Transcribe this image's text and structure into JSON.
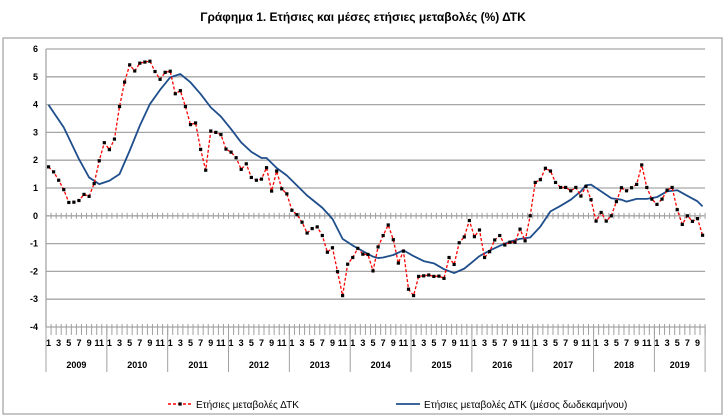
{
  "chart_data": {
    "type": "line",
    "title": "Γράφημα 1. Ετήσιες και μέσες ετήσιες μεταβολές (%) ΔΤΚ",
    "xlabel": "",
    "ylabel": "",
    "ylim": [
      -4,
      6
    ],
    "y_ticks": [
      6,
      5,
      4,
      3,
      2,
      1,
      0,
      -1,
      -2,
      -3,
      -4
    ],
    "years": [
      "2009",
      "2010",
      "2011",
      "2012",
      "2013",
      "2014",
      "2015",
      "2016",
      "2017",
      "2018",
      "2019"
    ],
    "month_tick_labels": [
      "1",
      "3",
      "5",
      "7",
      "9",
      "11"
    ],
    "grid": true,
    "legend_position": "bottom",
    "colors": {
      "annual": "#ff0000",
      "marker": "#000000",
      "average": "#1f4e8c",
      "grid": "#a6a6a6"
    },
    "series": [
      {
        "name": "Ετήσιες μεταβολές ΔΤΚ",
        "style": "dashed-with-markers",
        "values": [
          1.76,
          1.58,
          1.28,
          0.94,
          0.48,
          0.49,
          0.55,
          0.77,
          0.7,
          1.16,
          1.98,
          2.63,
          2.38,
          2.76,
          3.93,
          4.81,
          5.43,
          5.21,
          5.49,
          5.53,
          5.56,
          5.19,
          4.91,
          5.16,
          5.2,
          4.39,
          4.5,
          3.93,
          3.28,
          3.34,
          2.39,
          1.64,
          3.05,
          3.0,
          2.92,
          2.4,
          2.29,
          2.09,
          1.67,
          1.87,
          1.38,
          1.28,
          1.32,
          1.73,
          0.89,
          1.61,
          0.97,
          0.79,
          0.2,
          0.04,
          -0.23,
          -0.62,
          -0.46,
          -0.4,
          -0.71,
          -1.31,
          -1.15,
          -2.01,
          -2.87,
          -1.74,
          -1.5,
          -1.17,
          -1.38,
          -1.39,
          -1.98,
          -1.12,
          -0.71,
          -0.33,
          -0.86,
          -1.7,
          -1.27,
          -2.64,
          -2.87,
          -2.18,
          -2.16,
          -2.13,
          -2.18,
          -2.17,
          -2.25,
          -1.5,
          -1.75,
          -0.97,
          -0.76,
          -0.17,
          -0.75,
          -0.51,
          -1.5,
          -1.29,
          -0.87,
          -0.71,
          -1.05,
          -0.95,
          -0.95,
          -0.48,
          -0.9,
          0.0,
          1.2,
          1.3,
          1.71,
          1.61,
          1.2,
          1.02,
          1.02,
          0.9,
          1.02,
          0.71,
          1.06,
          0.58,
          -0.19,
          0.12,
          -0.19,
          0.0,
          0.51,
          1.01,
          0.9,
          1.01,
          1.13,
          1.83,
          1.02,
          0.6,
          0.41,
          0.6,
          0.92,
          1.02,
          0.22,
          -0.31,
          0.0,
          -0.2,
          -0.1,
          -0.7
        ]
      },
      {
        "name": "Ετήσιες μεταβολές ΔΤΚ (μέσος δωδεκαμήνου)",
        "style": "solid",
        "points": [
          [
            "2009-01",
            3.99
          ],
          [
            "2009-04",
            3.18
          ],
          [
            "2009-07",
            2.04
          ],
          [
            "2009-09",
            1.38
          ],
          [
            "2009-11",
            1.14
          ],
          [
            "2010-01",
            1.26
          ],
          [
            "2010-03",
            1.5
          ],
          [
            "2010-05",
            2.34
          ],
          [
            "2010-07",
            3.24
          ],
          [
            "2010-09",
            4.02
          ],
          [
            "2010-11",
            4.53
          ],
          [
            "2011-01",
            4.98
          ],
          [
            "2011-03",
            5.1
          ],
          [
            "2011-05",
            4.8
          ],
          [
            "2011-07",
            4.38
          ],
          [
            "2011-09",
            3.9
          ],
          [
            "2011-11",
            3.57
          ],
          [
            "2012-01",
            3.12
          ],
          [
            "2012-03",
            2.64
          ],
          [
            "2012-05",
            2.3
          ],
          [
            "2012-07",
            2.08
          ],
          [
            "2012-08",
            2.08
          ],
          [
            "2012-10",
            1.72
          ],
          [
            "2012-12",
            1.45
          ],
          [
            "2013-02",
            1.09
          ],
          [
            "2013-04",
            0.73
          ],
          [
            "2013-07",
            0.29
          ],
          [
            "2013-09",
            -0.11
          ],
          [
            "2013-11",
            -0.83
          ],
          [
            "2014-01",
            -1.07
          ],
          [
            "2014-03",
            -1.27
          ],
          [
            "2014-05",
            -1.47
          ],
          [
            "2014-06",
            -1.52
          ],
          [
            "2014-07",
            -1.5
          ],
          [
            "2014-09",
            -1.41
          ],
          [
            "2014-11",
            -1.24
          ],
          [
            "2015-01",
            -1.45
          ],
          [
            "2015-03",
            -1.63
          ],
          [
            "2015-05",
            -1.71
          ],
          [
            "2015-07",
            -1.92
          ],
          [
            "2015-09",
            -2.06
          ],
          [
            "2015-11",
            -1.9
          ],
          [
            "2016-01",
            -1.6
          ],
          [
            "2016-02",
            -1.45
          ],
          [
            "2016-04",
            -1.25
          ],
          [
            "2016-06",
            -1.08
          ],
          [
            "2016-08",
            -0.93
          ],
          [
            "2016-10",
            -0.83
          ],
          [
            "2016-12",
            -0.78
          ],
          [
            "2017-02",
            -0.39
          ],
          [
            "2017-04",
            0.16
          ],
          [
            "2017-06",
            0.36
          ],
          [
            "2017-08",
            0.58
          ],
          [
            "2017-10",
            0.88
          ],
          [
            "2017-11",
            1.1
          ],
          [
            "2017-12",
            1.12
          ],
          [
            "2018-02",
            0.88
          ],
          [
            "2018-04",
            0.63
          ],
          [
            "2018-06",
            0.58
          ],
          [
            "2018-07",
            0.51
          ],
          [
            "2018-09",
            0.61
          ],
          [
            "2018-11",
            0.61
          ],
          [
            "2019-01",
            0.67
          ],
          [
            "2019-03",
            0.88
          ],
          [
            "2019-05",
            0.92
          ],
          [
            "2019-07",
            0.72
          ],
          [
            "2019-09",
            0.52
          ],
          [
            "2019-10",
            0.34
          ]
        ]
      }
    ]
  }
}
